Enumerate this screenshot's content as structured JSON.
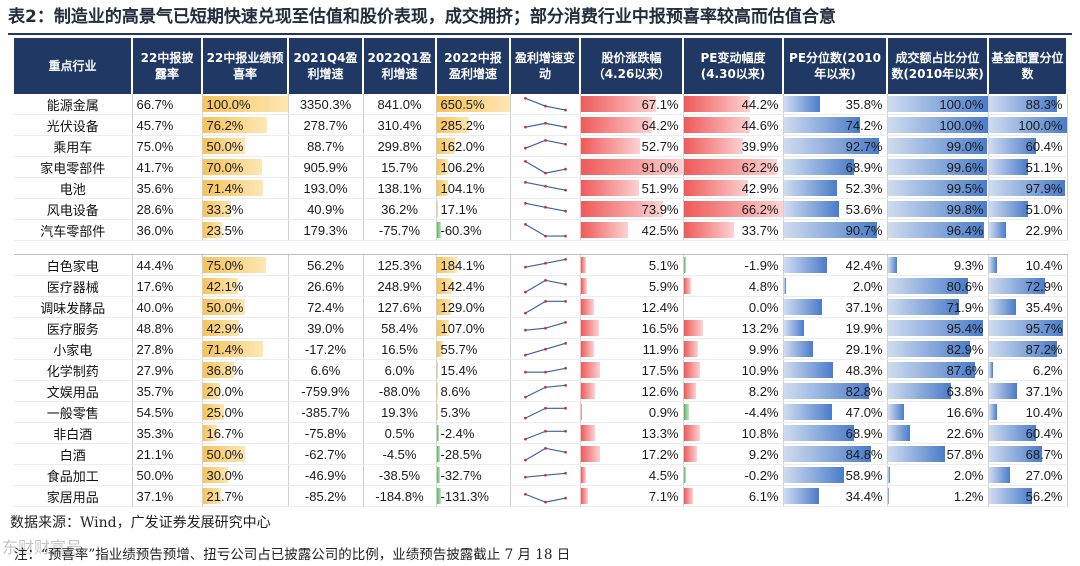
{
  "title": "表2：制造业的高景气已短期快速兑现至估值和股价表现，成交拥挤；部分消费行业中报预喜率较高而估值合意",
  "columns": [
    "重点行业",
    "22中报披露率",
    "22中报业绩预喜率",
    "2021Q4盈利增速",
    "2022Q1盈利增速",
    "2022中报盈利增速",
    "盈利增速变动",
    "股价涨跌幅（4.26以来）",
    "PE变动幅度(4.30以来)",
    "PE分位数(2010年以来)",
    "成交额占比分位数(2010年以来)",
    "基金配置分位数"
  ],
  "groups": [
    {
      "rows": [
        {
          "industry": "能源金属",
          "disclose": "66.7%",
          "preglad": "100.0%",
          "q4": "3350.3%",
          "q1": "841.0%",
          "h1": "650.5%",
          "spark": [
            3,
            1,
            0
          ],
          "price": "67.1%",
          "pe": "44.2%",
          "pepct": "35.8%",
          "turnover": "100.0%",
          "fund": "88.3%"
        },
        {
          "industry": "光伏设备",
          "disclose": "45.7%",
          "preglad": "76.2%",
          "q4": "278.7%",
          "q1": "310.4%",
          "h1": "285.2%",
          "spark": [
            1,
            2,
            1
          ],
          "price": "64.2%",
          "pe": "44.6%",
          "pepct": "74.2%",
          "turnover": "100.0%",
          "fund": "100.0%"
        },
        {
          "industry": "乘用车",
          "disclose": "75.0%",
          "preglad": "50.0%",
          "q4": "88.7%",
          "q1": "299.8%",
          "h1": "162.0%",
          "spark": [
            1,
            3,
            2
          ],
          "price": "52.7%",
          "pe": "39.9%",
          "pepct": "92.7%",
          "turnover": "99.0%",
          "fund": "60.4%"
        },
        {
          "industry": "家电零部件",
          "disclose": "41.7%",
          "preglad": "70.0%",
          "q4": "905.9%",
          "q1": "15.7%",
          "h1": "106.2%",
          "spark": [
            3,
            0,
            1
          ],
          "price": "91.0%",
          "pe": "62.2%",
          "pepct": "68.9%",
          "turnover": "99.6%",
          "fund": "51.1%"
        },
        {
          "industry": "电池",
          "disclose": "35.6%",
          "preglad": "71.4%",
          "q4": "193.0%",
          "q1": "138.1%",
          "h1": "104.1%",
          "spark": [
            3,
            2,
            1
          ],
          "price": "51.9%",
          "pe": "42.9%",
          "pepct": "52.3%",
          "turnover": "99.5%",
          "fund": "97.9%"
        },
        {
          "industry": "风电设备",
          "disclose": "28.6%",
          "preglad": "33.3%",
          "q4": "40.9%",
          "q1": "36.2%",
          "h1": "17.1%",
          "spark": [
            3,
            2,
            1
          ],
          "price": "73.9%",
          "pe": "66.2%",
          "pepct": "53.6%",
          "turnover": "99.8%",
          "fund": "51.0%"
        },
        {
          "industry": "汽车零部件",
          "disclose": "36.0%",
          "preglad": "23.5%",
          "q4": "179.3%",
          "q1": "-75.7%",
          "h1": "-60.3%",
          "spark": [
            3,
            0,
            0
          ],
          "price": "42.5%",
          "pe": "33.7%",
          "pepct": "90.7%",
          "turnover": "96.4%",
          "fund": "22.9%"
        }
      ]
    },
    {
      "rows": [
        {
          "industry": "白色家电",
          "disclose": "44.4%",
          "preglad": "75.0%",
          "q4": "56.2%",
          "q1": "125.3%",
          "h1": "184.1%",
          "spark": [
            1,
            2,
            3
          ],
          "price": "5.1%",
          "pe": "-1.9%",
          "pepct": "42.4%",
          "turnover": "9.3%",
          "fund": "10.4%"
        },
        {
          "industry": "医疗器械",
          "disclose": "17.6%",
          "preglad": "42.1%",
          "q4": "26.6%",
          "q1": "248.9%",
          "h1": "142.4%",
          "spark": [
            0,
            3,
            2
          ],
          "price": "5.9%",
          "pe": "4.8%",
          "pepct": "2.0%",
          "turnover": "80.6%",
          "fund": "72.9%"
        },
        {
          "industry": "调味发酵品",
          "disclose": "40.0%",
          "preglad": "50.0%",
          "q4": "72.4%",
          "q1": "127.6%",
          "h1": "129.0%",
          "spark": [
            0,
            3,
            3
          ],
          "price": "12.4%",
          "pe": "0.0%",
          "pepct": "37.1%",
          "turnover": "71.9%",
          "fund": "35.4%"
        },
        {
          "industry": "医疗服务",
          "disclose": "48.8%",
          "preglad": "42.9%",
          "q4": "39.0%",
          "q1": "58.4%",
          "h1": "107.0%",
          "spark": [
            1,
            1.5,
            3
          ],
          "price": "16.5%",
          "pe": "13.2%",
          "pepct": "19.9%",
          "turnover": "95.4%",
          "fund": "95.7%"
        },
        {
          "industry": "小家电",
          "disclose": "27.8%",
          "preglad": "71.4%",
          "q4": "-17.2%",
          "q1": "16.5%",
          "h1": "55.7%",
          "spark": [
            0,
            1.5,
            3
          ],
          "price": "11.9%",
          "pe": "9.9%",
          "pepct": "29.1%",
          "turnover": "82.9%",
          "fund": "87.2%"
        },
        {
          "industry": "化学制药",
          "disclose": "27.9%",
          "preglad": "36.8%",
          "q4": "6.6%",
          "q1": "6.0%",
          "h1": "15.4%",
          "spark": [
            1,
            1,
            2
          ],
          "price": "17.5%",
          "pe": "10.9%",
          "pepct": "48.3%",
          "turnover": "87.6%",
          "fund": "6.2%"
        },
        {
          "industry": "文娱用品",
          "disclose": "35.7%",
          "preglad": "20.0%",
          "q4": "-759.9%",
          "q1": "-88.0%",
          "h1": "8.6%",
          "spark": [
            0,
            2.5,
            3
          ],
          "price": "12.6%",
          "pe": "8.2%",
          "pepct": "82.8%",
          "turnover": "63.8%",
          "fund": "37.1%"
        },
        {
          "industry": "一般零售",
          "disclose": "54.5%",
          "preglad": "25.0%",
          "q4": "-385.7%",
          "q1": "19.3%",
          "h1": "5.3%",
          "spark": [
            0,
            2.5,
            2.5
          ],
          "price": "0.9%",
          "pe": "-4.4%",
          "pepct": "47.0%",
          "turnover": "16.6%",
          "fund": "10.4%"
        },
        {
          "industry": "非白酒",
          "disclose": "35.3%",
          "preglad": "16.7%",
          "q4": "-75.8%",
          "q1": "0.5%",
          "h1": "-2.4%",
          "spark": [
            0,
            2,
            2
          ],
          "price": "13.3%",
          "pe": "10.8%",
          "pepct": "68.9%",
          "turnover": "22.6%",
          "fund": "60.4%"
        },
        {
          "industry": "白酒",
          "disclose": "21.1%",
          "preglad": "50.0%",
          "q4": "-62.7%",
          "q1": "-4.5%",
          "h1": "-28.5%",
          "spark": [
            0,
            3,
            2
          ],
          "price": "17.2%",
          "pe": "9.2%",
          "pepct": "84.8%",
          "turnover": "57.8%",
          "fund": "68.7%"
        },
        {
          "industry": "食品加工",
          "disclose": "50.0%",
          "preglad": "30.0%",
          "q4": "-46.9%",
          "q1": "-38.5%",
          "h1": "-32.7%",
          "spark": [
            1,
            1.5,
            2
          ],
          "price": "4.5%",
          "pe": "-0.2%",
          "pepct": "58.9%",
          "turnover": "2.0%",
          "fund": "27.0%"
        },
        {
          "industry": "家居用品",
          "disclose": "37.1%",
          "preglad": "21.7%",
          "q4": "-85.2%",
          "q1": "-184.8%",
          "h1": "-131.3%",
          "spark": [
            2,
            0,
            1
          ],
          "price": "7.1%",
          "pe": "6.1%",
          "pepct": "34.4%",
          "turnover": "1.2%",
          "fund": "56.2%"
        }
      ]
    }
  ],
  "colors": {
    "header": "#1f3864",
    "gold": "#f6c35a",
    "green": "#57b45a",
    "red": "#ef5a5a",
    "blue": "#4a7cc9"
  },
  "source": "数据来源：Wind，广发证券发展研究中心",
  "note": "注：“预喜率”指业绩预告预增、扭亏公司占已披露公司的比例，业绩预告披露截止 7 月 18 日",
  "watermark": "东财财富号"
}
